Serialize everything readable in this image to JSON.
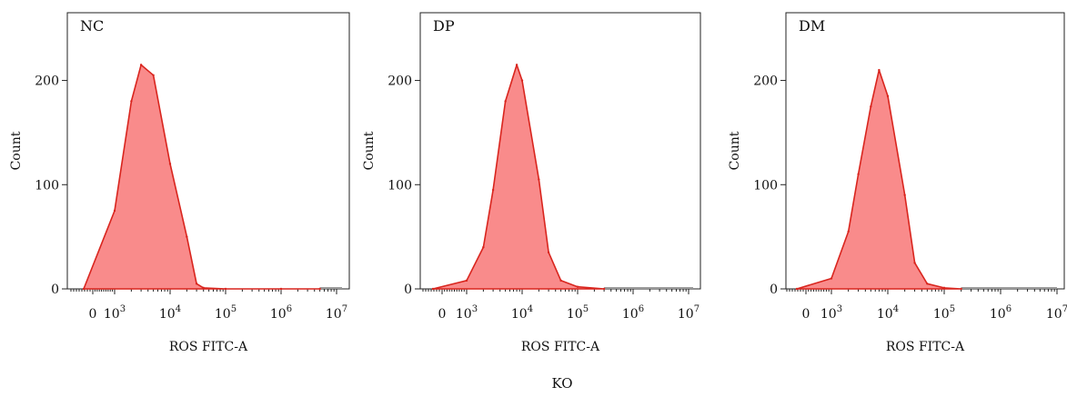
{
  "figure": {
    "caption": "KO"
  },
  "chart_data": [
    {
      "type": "area",
      "panel_label": "NC",
      "xlabel": "ROS FITC-A",
      "ylabel": "Count",
      "x_scale": "biexponential",
      "x_ticks": [
        "0",
        "10^3",
        "10^4",
        "10^5",
        "10^6",
        "10^7"
      ],
      "y_ticks": [
        0,
        100,
        200
      ],
      "ylim": [
        0,
        265
      ],
      "fill_color": "#f98b8b",
      "line_color": "#d9251e",
      "x": [
        0,
        1000,
        2000,
        3000,
        5000,
        10000,
        20000,
        30000,
        40000,
        100000,
        1000000,
        5000000
      ],
      "y": [
        0,
        75,
        180,
        215,
        205,
        120,
        50,
        5,
        1,
        0,
        0,
        0
      ]
    },
    {
      "type": "area",
      "panel_label": "DP",
      "xlabel": "ROS FITC-A",
      "ylabel": "Count",
      "x_scale": "biexponential",
      "x_ticks": [
        "0",
        "10^3",
        "10^4",
        "10^5",
        "10^6",
        "10^7"
      ],
      "y_ticks": [
        0,
        100,
        200
      ],
      "ylim": [
        0,
        265
      ],
      "fill_color": "#f98b8b",
      "line_color": "#d9251e",
      "x": [
        0,
        1000,
        2000,
        3000,
        5000,
        8000,
        10000,
        20000,
        30000,
        50000,
        100000,
        300000
      ],
      "y": [
        0,
        8,
        40,
        95,
        180,
        215,
        200,
        105,
        35,
        8,
        2,
        0
      ]
    },
    {
      "type": "area",
      "panel_label": "DM",
      "xlabel": "ROS FITC-A",
      "ylabel": "Count",
      "x_scale": "biexponential",
      "x_ticks": [
        "0",
        "10^3",
        "10^4",
        "10^5",
        "10^6",
        "10^7"
      ],
      "y_ticks": [
        0,
        100,
        200
      ],
      "ylim": [
        0,
        265
      ],
      "fill_color": "#f98b8b",
      "line_color": "#d9251e",
      "x": [
        0,
        1000,
        2000,
        3000,
        5000,
        7000,
        10000,
        20000,
        30000,
        50000,
        100000,
        200000
      ],
      "y": [
        0,
        10,
        55,
        110,
        175,
        210,
        185,
        90,
        25,
        5,
        1,
        0
      ]
    }
  ]
}
